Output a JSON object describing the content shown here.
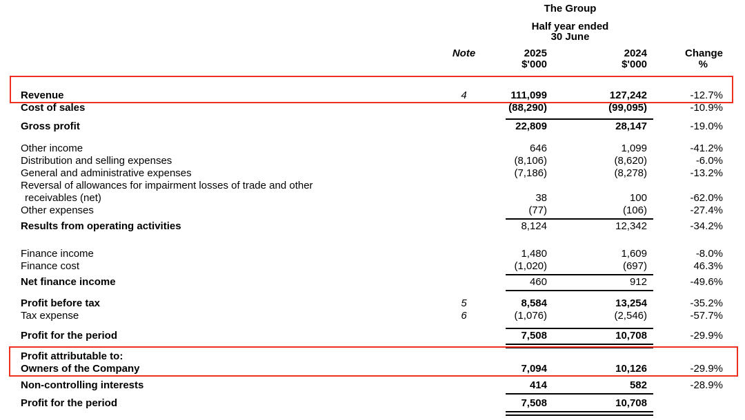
{
  "header": {
    "group": "The Group",
    "period_line1": "Half year ended",
    "period_line2": "30 June",
    "col_note": "Note",
    "col_2025": "2025",
    "col_2024": "2024",
    "col_unit_2025": "$'000",
    "col_unit_2024": "$'000",
    "col_change": "Change",
    "col_change_unit": "%"
  },
  "annotation": {
    "color": "#ee2f20",
    "highlights": [
      {
        "name": "revenue-row-highlight"
      },
      {
        "name": "profit-attributable-highlight"
      }
    ]
  },
  "table": {
    "rows": [
      {
        "label": "Revenue",
        "note": "4",
        "v2025": "111,099",
        "v2024": "127,242",
        "change": "-12.7%",
        "bold_label": true,
        "bold_values": true
      },
      {
        "label": "Cost of sales",
        "v2025": "(88,290)",
        "v2024": "(99,095)",
        "change": "-10.9%",
        "bold_label": true,
        "bold_values": true,
        "rule_below": "single"
      },
      {
        "label": "Gross profit",
        "v2025": "22,809",
        "v2024": "28,147",
        "change": "-19.0%",
        "bold_label": true,
        "bold_values": true
      },
      {
        "label": "Other income",
        "v2025": "646",
        "v2024": "1,099",
        "change": "-41.2%"
      },
      {
        "label": "Distribution and selling expenses",
        "v2025": "(8,106)",
        "v2024": "(8,620)",
        "change": "-6.0%"
      },
      {
        "label": "General and administrative expenses",
        "v2025": "(7,186)",
        "v2024": "(8,278)",
        "change": "-13.2%"
      },
      {
        "label": "Reversal of allowances for impairment losses of trade and other"
      },
      {
        "label": "receivables (net)",
        "indent": true,
        "v2025": "38",
        "v2024": "100",
        "change": "-62.0%"
      },
      {
        "label": "Other expenses",
        "v2025": "(77)",
        "v2024": "(106)",
        "change": "-27.4%",
        "rule_below": "single"
      },
      {
        "label": "Results from operating activities",
        "bold_label": true,
        "v2025": "8,124",
        "v2024": "12,342",
        "change": "-34.2%"
      },
      {
        "label": "Finance income",
        "v2025": "1,480",
        "v2024": "1,609",
        "change": "-8.0%"
      },
      {
        "label": "Finance cost",
        "v2025": "(1,020)",
        "v2024": "(697)",
        "change": "46.3%",
        "rule_below": "single"
      },
      {
        "label": "Net finance income",
        "bold_label": true,
        "v2025": "460",
        "v2024": "912",
        "change": "-49.6%",
        "rule_below": "single"
      },
      {
        "label": "Profit before tax",
        "note": "5",
        "v2025": "8,584",
        "v2024": "13,254",
        "change": "-35.2%",
        "bold_label": true,
        "bold_values": true
      },
      {
        "label": "Tax expense",
        "note": "6",
        "v2025": "(1,076)",
        "v2024": "(2,546)",
        "change": "-57.7%",
        "rule_below": "single"
      },
      {
        "label": "Profit for the period",
        "v2025": "7,508",
        "v2024": "10,708",
        "change": "-29.9%",
        "bold_label": true,
        "bold_values": true,
        "rule_below": "double"
      },
      {
        "label": "Profit attributable to:",
        "bold_label": true
      },
      {
        "label": "Owners of the Company",
        "v2025": "7,094",
        "v2024": "10,126",
        "change": "-29.9%",
        "bold_label": true,
        "bold_values": true
      },
      {
        "label": "Non-controlling interests",
        "v2025": "414",
        "v2024": "582",
        "change": "-28.9%",
        "bold_label": true,
        "bold_values": true,
        "rule_below": "single"
      },
      {
        "label": "Profit for the period",
        "v2025": "7,508",
        "v2024": "10,708",
        "bold_label": true,
        "bold_values": true,
        "rule_below": "double"
      }
    ]
  }
}
